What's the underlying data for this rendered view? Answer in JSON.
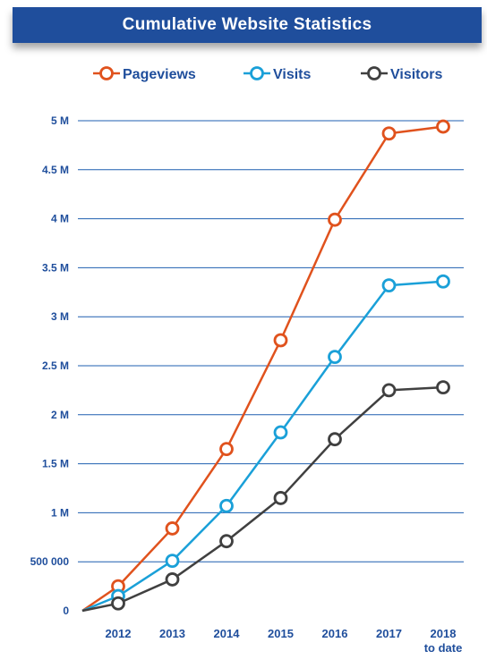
{
  "title": "Cumulative Website Statistics",
  "chart_data": {
    "type": "line",
    "title": "Cumulative Website Statistics",
    "categories": [
      "2012",
      "2013",
      "2014",
      "2015",
      "2016",
      "2017",
      "2018"
    ],
    "category_labels": [
      [
        "2012"
      ],
      [
        "2013"
      ],
      [
        "2014"
      ],
      [
        "2015"
      ],
      [
        "2016"
      ],
      [
        "2017"
      ],
      [
        "2018",
        "to date"
      ]
    ],
    "series": [
      {
        "name": "Pageviews",
        "color": "#e0521d",
        "values": [
          250000,
          840000,
          1650000,
          2760000,
          3990000,
          4870000,
          4940000
        ]
      },
      {
        "name": "Visits",
        "color": "#1aa0d8",
        "values": [
          150000,
          510000,
          1070000,
          1820000,
          2590000,
          3320000,
          3360000
        ]
      },
      {
        "name": "Visitors",
        "color": "#404040",
        "values": [
          75000,
          320000,
          710000,
          1150000,
          1750000,
          2250000,
          2280000
        ]
      }
    ],
    "origin_point": 0,
    "ylim": [
      0,
      5000000
    ],
    "y_ticks": [
      {
        "value": 0,
        "label": "0"
      },
      {
        "value": 500000,
        "label": "500 000"
      },
      {
        "value": 1000000,
        "label": "1 M"
      },
      {
        "value": 1500000,
        "label": "1.5 M"
      },
      {
        "value": 2000000,
        "label": "2 M"
      },
      {
        "value": 2500000,
        "label": "2.5 M"
      },
      {
        "value": 3000000,
        "label": "3 M"
      },
      {
        "value": 3500000,
        "label": "3.5 M"
      },
      {
        "value": 4000000,
        "label": "4 M"
      },
      {
        "value": 4500000,
        "label": "4.5 M"
      },
      {
        "value": 5000000,
        "label": "5 M"
      }
    ],
    "grid": true,
    "legend_position": "top"
  }
}
